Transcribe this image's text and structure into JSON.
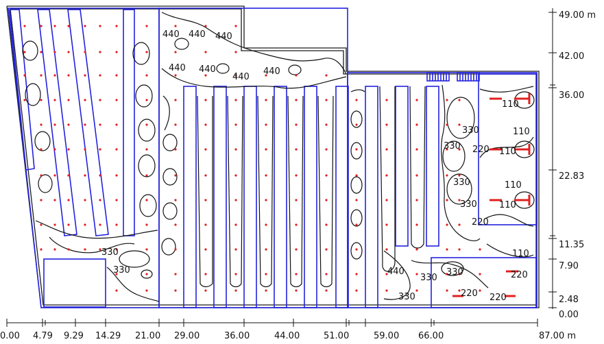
{
  "colors": {
    "outline": "#1a1a1a",
    "luminaire": "#2222dd",
    "contour": "#111111",
    "grid_point": "#e02020",
    "marker": "#e02020"
  },
  "contour_labels": [
    "440",
    "440",
    "440",
    "440",
    "440",
    "440",
    "440",
    "330",
    "330",
    "330",
    "330",
    "330",
    "330",
    "330",
    "330",
    "330",
    "220",
    "220",
    "220",
    "220",
    "220",
    "110",
    "110",
    "110",
    "110",
    "110",
    "110",
    "440",
    "330"
  ],
  "x_axis": {
    "ticks": [
      "0.00",
      "4.79",
      "9.29",
      "14.29",
      "21.00",
      "29.00",
      "36.00",
      "44.00",
      "51.00",
      "59.00",
      "66.00",
      "87.00 m"
    ]
  },
  "y_axis": {
    "ticks": [
      "49.00 m",
      "42.00",
      "36.00",
      "22.83",
      "11.35",
      "7.90",
      "2.48",
      "0.00"
    ]
  }
}
